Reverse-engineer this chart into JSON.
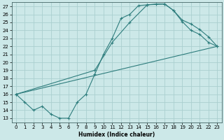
{
  "xlabel": "Humidex (Indice chaleur)",
  "bg_color": "#cce8e8",
  "line_color": "#2e7d7d",
  "grid_color": "#aacfcf",
  "xlim": [
    -0.5,
    23.5
  ],
  "ylim": [
    12.5,
    27.5
  ],
  "xticks": [
    0,
    1,
    2,
    3,
    4,
    5,
    6,
    7,
    8,
    9,
    10,
    11,
    12,
    13,
    14,
    15,
    16,
    17,
    18,
    19,
    20,
    21,
    22,
    23
  ],
  "yticks": [
    13,
    14,
    15,
    16,
    17,
    18,
    19,
    20,
    21,
    22,
    23,
    24,
    25,
    26,
    27
  ],
  "curve1_x": [
    0,
    1,
    2,
    3,
    4,
    5,
    6,
    7,
    8,
    9,
    10,
    11,
    12,
    13,
    14,
    15,
    16,
    17,
    18,
    19,
    20,
    21,
    22,
    23
  ],
  "curve1_y": [
    16,
    15,
    14,
    14.5,
    13.5,
    13,
    13,
    15,
    16,
    18.5,
    21,
    23,
    25.5,
    26.0,
    27.1,
    27.2,
    27.3,
    27.3,
    26.5,
    25.1,
    24.0,
    23.5,
    22.5,
    22.0
  ],
  "curve2_x": [
    0,
    9,
    11,
    13,
    15,
    17,
    18,
    19,
    20,
    21,
    22,
    23
  ],
  "curve2_y": [
    16,
    19,
    22.5,
    25.0,
    27.2,
    27.3,
    26.5,
    25.3,
    24.8,
    24.1,
    23.2,
    22.0
  ],
  "line3_x": [
    0,
    23
  ],
  "line3_y": [
    16,
    22.0
  ]
}
